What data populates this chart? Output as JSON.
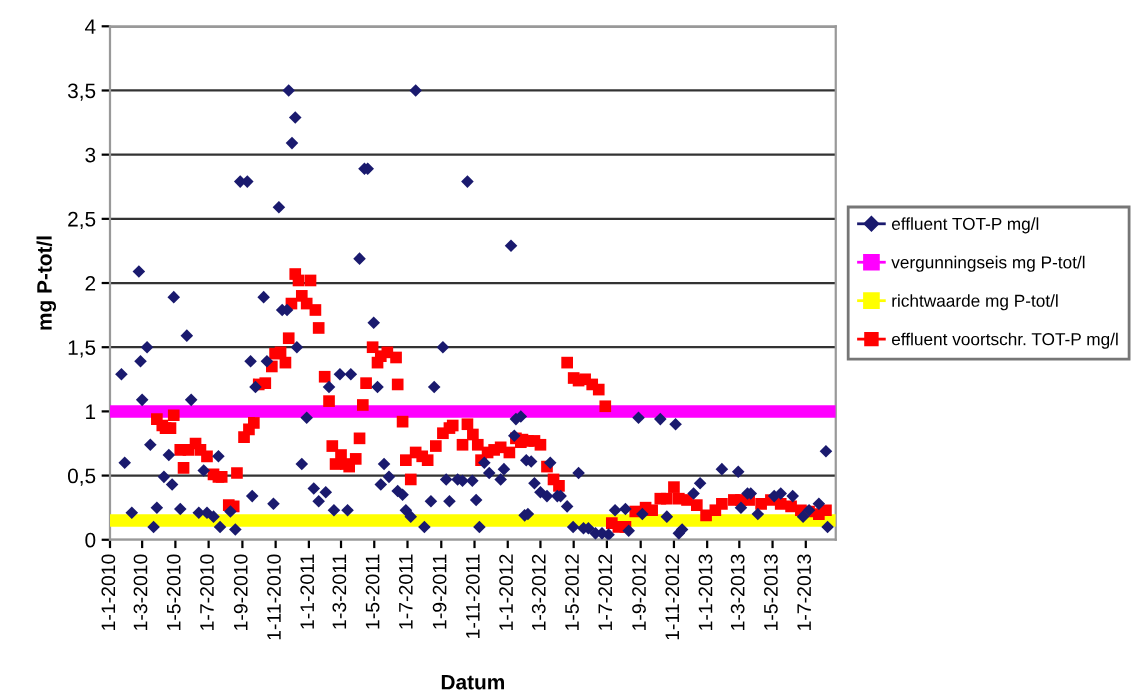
{
  "chart_data": {
    "type": "scatter",
    "xlabel": "Datum",
    "ylabel": "mg P-tot/l",
    "xlim": [
      "2010-01-01",
      "2013-08-25"
    ],
    "xticks": [
      {
        "value": "2010-01-01",
        "label": "1-1-2010"
      },
      {
        "value": "2010-03-01",
        "label": "1-3-2010"
      },
      {
        "value": "2010-05-01",
        "label": "1-5-2010"
      },
      {
        "value": "2010-07-01",
        "label": "1-7-2010"
      },
      {
        "value": "2010-09-01",
        "label": "1-9-2010"
      },
      {
        "value": "2010-11-01",
        "label": "1-11-2010"
      },
      {
        "value": "2011-01-01",
        "label": "1-1-2011"
      },
      {
        "value": "2011-03-01",
        "label": "1-3-2011"
      },
      {
        "value": "2011-05-01",
        "label": "1-5-2011"
      },
      {
        "value": "2011-07-01",
        "label": "1-7-2011"
      },
      {
        "value": "2011-09-01",
        "label": "1-9-2011"
      },
      {
        "value": "2011-11-01",
        "label": "1-11-2011"
      },
      {
        "value": "2012-01-01",
        "label": "1-1-2012"
      },
      {
        "value": "2012-03-01",
        "label": "1-3-2012"
      },
      {
        "value": "2012-05-01",
        "label": "1-5-2012"
      },
      {
        "value": "2012-07-01",
        "label": "1-7-2012"
      },
      {
        "value": "2012-09-01",
        "label": "1-9-2012"
      },
      {
        "value": "2012-11-01",
        "label": "1-11-2012"
      },
      {
        "value": "2013-01-01",
        "label": "1-1-2013"
      },
      {
        "value": "2013-03-01",
        "label": "1-3-2013"
      },
      {
        "value": "2013-05-01",
        "label": "1-5-2013"
      },
      {
        "value": "2013-07-01",
        "label": "1-7-2013"
      }
    ],
    "ylim": [
      0,
      4
    ],
    "yticks": [
      0,
      {
        "value": 0.5,
        "label": "0,5"
      },
      1,
      {
        "value": 1.5,
        "label": "1,5"
      },
      2,
      {
        "value": 2.5,
        "label": "2,5"
      },
      3,
      {
        "value": 3.5,
        "label": "3,5"
      },
      4
    ],
    "grid": "y",
    "legend": "right",
    "series": [
      {
        "name": "effluent TOT-P mg/l",
        "marker": "diamond",
        "color": "#1a1a6e",
        "x": [
          "2010-01-22",
          "2010-01-28",
          "2010-02-10",
          "2010-02-23",
          "2010-02-26",
          "2010-03-01",
          "2010-03-10",
          "2010-03-16",
          "2010-03-22",
          "2010-03-28",
          "2010-04-10",
          "2010-04-19",
          "2010-04-25",
          "2010-04-28",
          "2010-05-10",
          "2010-05-22",
          "2010-05-30",
          "2010-06-13",
          "2010-06-22",
          "2010-06-28",
          "2010-07-10",
          "2010-07-19",
          "2010-07-22",
          "2010-08-10",
          "2010-08-19",
          "2010-08-28",
          "2010-09-10",
          "2010-09-16",
          "2010-09-19",
          "2010-09-25",
          "2010-10-10",
          "2010-10-16",
          "2010-10-28",
          "2010-11-07",
          "2010-11-13",
          "2010-11-22",
          "2010-11-25",
          "2010-12-01",
          "2010-12-07",
          "2010-12-10",
          "2010-12-19",
          "2010-12-28",
          "2011-01-10",
          "2011-01-19",
          "2011-02-01",
          "2011-02-07",
          "2011-02-16",
          "2011-02-27",
          "2011-03-13",
          "2011-03-19",
          "2011-04-04",
          "2011-04-13",
          "2011-04-19",
          "2011-04-30",
          "2011-05-07",
          "2011-05-13",
          "2011-05-19",
          "2011-05-28",
          "2011-06-13",
          "2011-06-22",
          "2011-06-28",
          "2011-07-07",
          "2011-07-16",
          "2011-08-01",
          "2011-08-13",
          "2011-08-19",
          "2011-09-04",
          "2011-09-10",
          "2011-09-16",
          "2011-10-01",
          "2011-10-10",
          "2011-10-19",
          "2011-10-28",
          "2011-11-04",
          "2011-11-10",
          "2011-11-19",
          "2011-11-28",
          "2011-12-19",
          "2011-12-25",
          "2012-01-07",
          "2012-01-13",
          "2012-01-16",
          "2012-01-25",
          "2012-02-01",
          "2012-02-04",
          "2012-02-07",
          "2012-02-13",
          "2012-02-19",
          "2012-03-01",
          "2012-03-13",
          "2012-03-19",
          "2012-04-01",
          "2012-04-07",
          "2012-04-19",
          "2012-04-30",
          "2012-05-10",
          "2012-05-19",
          "2012-05-28",
          "2012-06-10",
          "2012-06-22",
          "2012-07-04",
          "2012-07-16",
          "2012-08-04",
          "2012-08-10",
          "2012-08-28",
          "2012-09-04",
          "2012-10-07",
          "2012-10-19",
          "2012-11-04",
          "2012-11-10",
          "2012-11-16",
          "2012-12-07",
          "2012-12-19",
          "2013-01-28",
          "2013-02-27",
          "2013-03-04",
          "2013-03-16",
          "2013-03-22",
          "2013-04-04",
          "2013-05-04",
          "2013-05-16",
          "2013-06-07",
          "2013-06-26",
          "2013-07-07",
          "2013-07-25",
          "2013-08-07",
          "2013-08-10"
        ],
        "values": [
          1.29,
          0.6,
          0.21,
          2.09,
          1.39,
          1.09,
          1.5,
          0.74,
          0.1,
          0.25,
          0.49,
          0.66,
          0.43,
          1.89,
          0.24,
          1.59,
          1.09,
          0.21,
          0.54,
          0.21,
          0.18,
          0.65,
          0.1,
          0.22,
          0.08,
          2.79,
          2.79,
          1.39,
          0.34,
          1.19,
          1.89,
          1.39,
          0.28,
          2.59,
          1.79,
          1.79,
          3.5,
          3.09,
          3.29,
          1.5,
          0.59,
          0.95,
          0.4,
          0.3,
          0.37,
          1.19,
          0.23,
          1.29,
          0.23,
          1.29,
          2.19,
          2.89,
          2.89,
          1.69,
          1.19,
          0.43,
          0.59,
          0.49,
          0.38,
          0.35,
          0.23,
          0.18,
          3.5,
          0.1,
          0.3,
          1.19,
          1.5,
          0.47,
          0.3,
          0.47,
          0.46,
          2.79,
          0.46,
          0.31,
          0.1,
          0.6,
          0.52,
          0.47,
          0.55,
          2.29,
          0.81,
          0.94,
          0.96,
          0.19,
          0.62,
          0.2,
          0.61,
          0.44,
          0.37,
          0.34,
          0.6,
          0.34,
          0.34,
          0.26,
          0.1,
          0.52,
          0.09,
          0.09,
          0.05,
          0.05,
          0.04,
          0.23,
          0.24,
          0.07,
          0.95,
          0.2,
          0.94,
          0.18,
          0.9,
          0.05,
          0.08,
          0.36,
          0.44,
          0.55,
          0.53,
          0.25,
          0.36,
          0.36,
          0.2,
          0.34,
          0.36,
          0.34,
          0.18,
          0.23,
          0.28,
          0.69,
          0.1
        ]
      },
      {
        "name": "vergunningseis mg P-tot/l",
        "type": "line",
        "marker": "none",
        "color": "#ff00ff",
        "x": [
          "2010-01-01",
          "2013-08-25"
        ],
        "values": [
          1,
          1
        ]
      },
      {
        "name": "richtwaarde mg P-tot/l",
        "type": "line",
        "marker": "none",
        "color": "#ffff00",
        "x": [
          "2010-01-01",
          "2013-08-25"
        ],
        "values": [
          0.15,
          0.15
        ]
      },
      {
        "name": "effluent voortschr. TOT-P mg/l",
        "marker": "square",
        "color": "#ff0000",
        "x": [
          "2010-03-28",
          "2010-04-07",
          "2010-04-13",
          "2010-04-22",
          "2010-04-28",
          "2010-05-10",
          "2010-05-16",
          "2010-05-25",
          "2010-06-07",
          "2010-06-16",
          "2010-06-28",
          "2010-07-10",
          "2010-07-19",
          "2010-07-25",
          "2010-08-07",
          "2010-08-16",
          "2010-08-22",
          "2010-09-04",
          "2010-09-13",
          "2010-09-22",
          "2010-10-01",
          "2010-10-13",
          "2010-10-25",
          "2010-10-31",
          "2010-11-10",
          "2010-11-19",
          "2010-11-25",
          "2010-11-30",
          "2010-12-07",
          "2010-12-13",
          "2010-12-19",
          "2010-12-28",
          "2011-01-04",
          "2011-01-13",
          "2011-01-19",
          "2011-01-30",
          "2011-02-07",
          "2011-02-13",
          "2011-02-19",
          "2011-03-01",
          "2011-03-10",
          "2011-03-16",
          "2011-03-28",
          "2011-04-04",
          "2011-04-10",
          "2011-04-16",
          "2011-04-28",
          "2011-05-07",
          "2011-05-13",
          "2011-05-25",
          "2011-06-10",
          "2011-06-13",
          "2011-06-22",
          "2011-06-28",
          "2011-07-07",
          "2011-07-16",
          "2011-07-28",
          "2011-08-07",
          "2011-08-22",
          "2011-09-04",
          "2011-09-16",
          "2011-09-22",
          "2011-10-10",
          "2011-10-19",
          "2011-10-29",
          "2011-11-07",
          "2011-11-13",
          "2011-11-25",
          "2011-12-07",
          "2011-12-19",
          "2012-01-04",
          "2012-01-16",
          "2012-01-25",
          "2012-01-28",
          "2012-02-07",
          "2012-02-19",
          "2012-03-01",
          "2012-03-13",
          "2012-03-25",
          "2012-04-04",
          "2012-04-19",
          "2012-05-01",
          "2012-05-10",
          "2012-05-22",
          "2012-06-04",
          "2012-06-16",
          "2012-06-28",
          "2012-07-10",
          "2012-07-22",
          "2012-08-04",
          "2012-08-22",
          "2012-09-10",
          "2012-09-22",
          "2012-10-07",
          "2012-10-19",
          "2012-11-01",
          "2012-11-10",
          "2012-11-25",
          "2012-12-13",
          "2012-12-30",
          "2013-01-16",
          "2013-01-28",
          "2013-02-19",
          "2013-03-04",
          "2013-03-19",
          "2013-04-10",
          "2013-04-28",
          "2013-05-16",
          "2013-06-04",
          "2013-06-22",
          "2013-07-07",
          "2013-07-25",
          "2013-08-07"
        ],
        "values": [
          0.94,
          0.89,
          0.87,
          0.87,
          0.97,
          0.7,
          0.56,
          0.7,
          0.75,
          0.7,
          0.65,
          0.51,
          0.49,
          0.49,
          0.27,
          0.26,
          0.52,
          0.8,
          0.86,
          0.91,
          1.21,
          1.22,
          1.35,
          1.45,
          1.46,
          1.38,
          1.57,
          1.84,
          2.07,
          2.02,
          1.9,
          1.84,
          2.02,
          1.79,
          1.65,
          1.27,
          1.08,
          0.73,
          0.59,
          0.66,
          0.59,
          0.57,
          0.63,
          0.79,
          1.05,
          1.22,
          1.5,
          1.38,
          1.43,
          1.46,
          1.42,
          1.21,
          0.92,
          0.62,
          0.47,
          0.68,
          0.65,
          0.62,
          0.73,
          0.83,
          0.87,
          0.89,
          0.74,
          0.9,
          0.82,
          0.74,
          0.62,
          0.68,
          0.7,
          0.72,
          0.68,
          0.79,
          0.76,
          0.78,
          0.77,
          0.77,
          0.74,
          0.57,
          0.47,
          0.42,
          1.38,
          1.26,
          1.24,
          1.25,
          1.21,
          1.17,
          1.04,
          0.13,
          0.1,
          0.1,
          0.22,
          0.25,
          0.23,
          0.32,
          0.32,
          0.41,
          0.32,
          0.31,
          0.27,
          0.19,
          0.23,
          0.28,
          0.31,
          0.31,
          0.31,
          0.28,
          0.31,
          0.28,
          0.26,
          0.23,
          0.22,
          0.2,
          0.23
        ]
      }
    ]
  }
}
